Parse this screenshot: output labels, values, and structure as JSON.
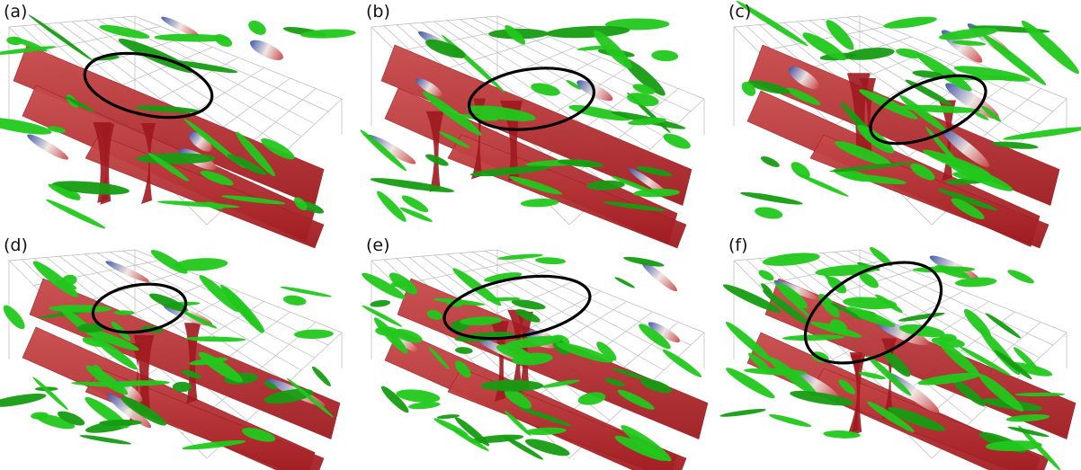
{
  "panels": [
    {
      "label": "(a)"
    },
    {
      "label": "(b)"
    },
    {
      "label": "(c)"
    },
    {
      "label": "(d)"
    },
    {
      "label": "(e)"
    },
    {
      "label": "(f)"
    }
  ],
  "colors": {
    "background": "#ffffff",
    "grid": "#b9b9b9",
    "red_isosurface": "#9e1a1f",
    "red_highlight": "#c84a4a",
    "green_isosurface": "#22c81c",
    "green_dark": "#169c12",
    "blue_isosurface": "#4055a8",
    "white_transition": "#efe6e2",
    "annotation_ellipse": "#000000"
  }
}
